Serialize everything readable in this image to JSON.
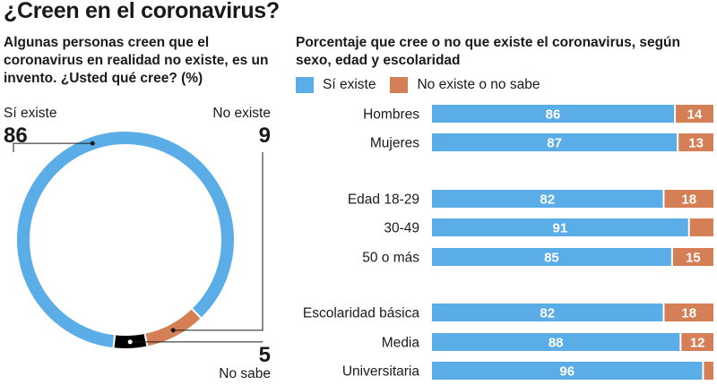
{
  "title": "¿Creen en el coronavirus?",
  "left_subtitle": "Algunas personas creen que el coronavirus en realidad no existe, es un invento. ¿Usted qué cree? (%)",
  "right_subtitle": "Porcentaje que cree o no que existe el coronavirus, según sexo, edad y escolaridad",
  "colors": {
    "si": "#5aade6",
    "no": "#d47f55",
    "ns": "#000000"
  },
  "legend": {
    "si": "Sí existe",
    "no": "No existe o no sabe"
  },
  "donut": {
    "si": {
      "label": "Sí existe",
      "value": 86
    },
    "no": {
      "label": "No existe",
      "value": 9
    },
    "ns": {
      "label": "No sabe",
      "value": 5
    }
  },
  "chart_data": [
    {
      "type": "pie",
      "title": "¿Usted qué cree? (%)",
      "categories": [
        "Sí existe",
        "No existe",
        "No sabe"
      ],
      "values": [
        86,
        9,
        5
      ]
    },
    {
      "type": "bar",
      "orientation": "horizontal",
      "stacked": true,
      "categories": [
        "Hombres",
        "Mujeres",
        "Edad 18-29",
        "30-49",
        "50 o más",
        "Escolaridad básica",
        "Media",
        "Universitaria"
      ],
      "groups": [
        [
          0,
          1
        ],
        [
          2,
          3,
          4
        ],
        [
          5,
          6,
          7
        ]
      ],
      "series": [
        {
          "name": "Sí existe",
          "values": [
            86,
            87,
            82,
            91,
            85,
            82,
            88,
            96
          ]
        },
        {
          "name": "No existe o no sabe",
          "values": [
            14,
            13,
            18,
            9,
            15,
            18,
            12,
            4
          ]
        }
      ],
      "shown_labels": [
        [
          "86",
          "87",
          "82",
          "91",
          "85",
          "82",
          "88",
          "96"
        ],
        [
          "14",
          "13",
          "18",
          "",
          "15",
          "18",
          "12",
          ""
        ]
      ],
      "xlim": [
        0,
        100
      ]
    }
  ]
}
